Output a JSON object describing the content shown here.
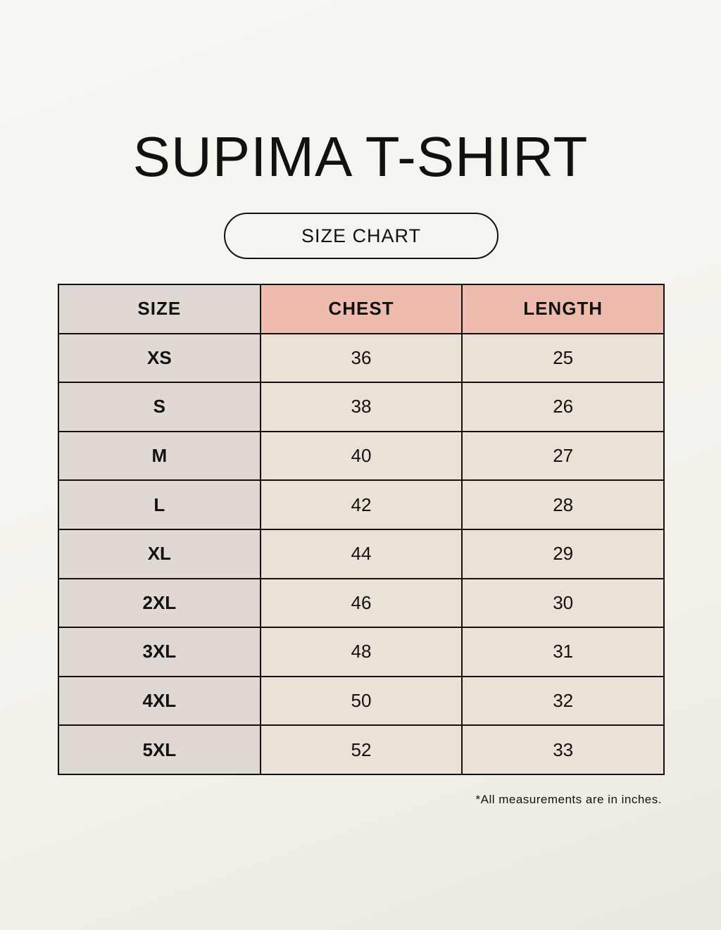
{
  "title": "SUPIMA T-SHIRT",
  "subtitle": "SIZE CHART",
  "colors": {
    "size_column": "#e0d8d3",
    "header_highlight": "#eebcae",
    "cell": "#eae2d7"
  },
  "table": {
    "headers": [
      "SIZE",
      "CHEST",
      "LENGTH"
    ],
    "rows": [
      [
        "XS",
        "36",
        "25"
      ],
      [
        "S",
        "38",
        "26"
      ],
      [
        "M",
        "40",
        "27"
      ],
      [
        "L",
        "42",
        "28"
      ],
      [
        "XL",
        "44",
        "29"
      ],
      [
        "2XL",
        "46",
        "30"
      ],
      [
        "3XL",
        "48",
        "31"
      ],
      [
        "4XL",
        "50",
        "32"
      ],
      [
        "5XL",
        "52",
        "33"
      ]
    ]
  },
  "footnote": "*All measurements are in inches."
}
